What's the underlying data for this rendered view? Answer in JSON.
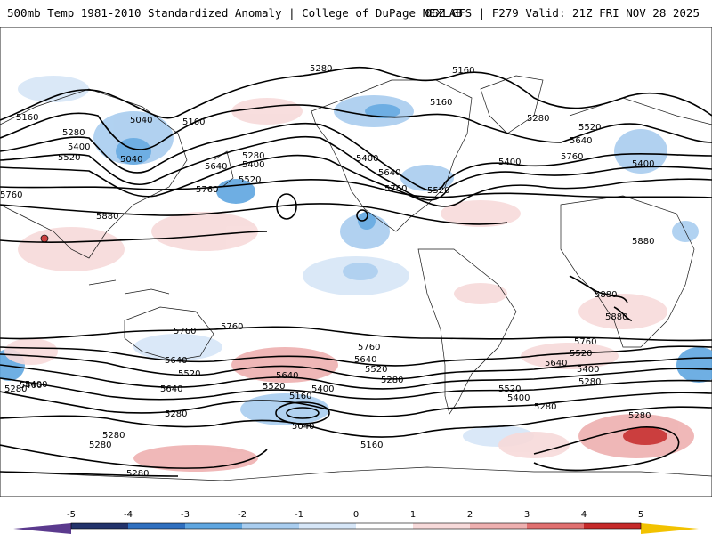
{
  "header": {
    "title_left": "500mb Temp 1981-2010 Standardized Anomaly | College of DuPage NEXLAB",
    "title_right": "06Z GFS | F279 Valid: 21Z FRI NOV 28 2025"
  },
  "colors": {
    "cold_1": "#d6e6f7",
    "cold_2": "#a9cdef",
    "cold_3": "#5fa6e0",
    "cold_4": "#2f6fbf",
    "cold_5": "#23336b",
    "warm_1": "#f7dada",
    "warm_2": "#eeb0b0",
    "warm_3": "#e07070",
    "warm_4": "#c62a2a",
    "warm_5": "#7a0c0c",
    "extreme_low": "#5b3a8e",
    "extreme_high": "#f2c200",
    "contour": "#000000",
    "border": "#1a1a1a"
  },
  "contour_labels": [
    {
      "text": "5280",
      "id": "c1"
    },
    {
      "text": "5160",
      "id": "c2"
    },
    {
      "text": "5040",
      "id": "c3"
    },
    {
      "text": "5160",
      "id": "c4"
    },
    {
      "text": "5280",
      "id": "c5"
    },
    {
      "text": "5400",
      "id": "c6"
    },
    {
      "text": "5520",
      "id": "c7"
    },
    {
      "text": "5040",
      "id": "c8"
    },
    {
      "text": "5280",
      "id": "c9"
    },
    {
      "text": "5400",
      "id": "c10"
    },
    {
      "text": "5520",
      "id": "c11"
    },
    {
      "text": "5640",
      "id": "c12"
    },
    {
      "text": "5760",
      "id": "c13"
    },
    {
      "text": "5760",
      "id": "c14"
    },
    {
      "text": "5880",
      "id": "c15"
    },
    {
      "text": "5160",
      "id": "c16"
    },
    {
      "text": "5160",
      "id": "c17"
    },
    {
      "text": "5280",
      "id": "c18"
    },
    {
      "text": "5400",
      "id": "c19"
    },
    {
      "text": "5640",
      "id": "c20"
    },
    {
      "text": "5760",
      "id": "c21"
    },
    {
      "text": "5520",
      "id": "c22"
    },
    {
      "text": "5520",
      "id": "c23"
    },
    {
      "text": "5640",
      "id": "c24"
    },
    {
      "text": "5760",
      "id": "c25"
    },
    {
      "text": "5400",
      "id": "c26"
    },
    {
      "text": "5400",
      "id": "c27"
    },
    {
      "text": "5880",
      "id": "c28"
    },
    {
      "text": "5880",
      "id": "c29"
    },
    {
      "text": "5880",
      "id": "c30"
    },
    {
      "text": "5760",
      "id": "c31"
    },
    {
      "text": "5640",
      "id": "c32"
    },
    {
      "text": "5520",
      "id": "c33"
    },
    {
      "text": "5400",
      "id": "c34"
    },
    {
      "text": "5280",
      "id": "c35"
    },
    {
      "text": "5160",
      "id": "c36"
    },
    {
      "text": "5040",
      "id": "c37"
    },
    {
      "text": "5760",
      "id": "c38"
    },
    {
      "text": "5640",
      "id": "c39"
    },
    {
      "text": "5520",
      "id": "c40"
    },
    {
      "text": "5280",
      "id": "c41"
    },
    {
      "text": "5160",
      "id": "c42"
    },
    {
      "text": "5400",
      "id": "c43"
    },
    {
      "text": "5760",
      "id": "c44"
    },
    {
      "text": "5640",
      "id": "c45"
    },
    {
      "text": "5520",
      "id": "c46"
    },
    {
      "text": "5400",
      "id": "c47"
    },
    {
      "text": "5280",
      "id": "c48"
    },
    {
      "text": "5280",
      "id": "c49"
    },
    {
      "text": "5280",
      "id": "c50"
    },
    {
      "text": "5280",
      "id": "c51"
    },
    {
      "text": "5280",
      "id": "c52"
    },
    {
      "text": "5280",
      "id": "c53"
    },
    {
      "text": "5400",
      "id": "c54"
    },
    {
      "text": "5520",
      "id": "c55"
    },
    {
      "text": "5640",
      "id": "c56"
    },
    {
      "text": "5760",
      "id": "c57"
    },
    {
      "text": "5640",
      "id": "c58"
    },
    {
      "text": "5520",
      "id": "c59"
    },
    {
      "text": "5400",
      "id": "c60"
    },
    {
      "text": "5280",
      "id": "c61"
    }
  ],
  "colorbar": {
    "ticks": [
      "-5",
      "-4",
      "-3",
      "-2",
      "-1",
      "0",
      "1",
      "2",
      "3",
      "4",
      "5"
    ]
  }
}
